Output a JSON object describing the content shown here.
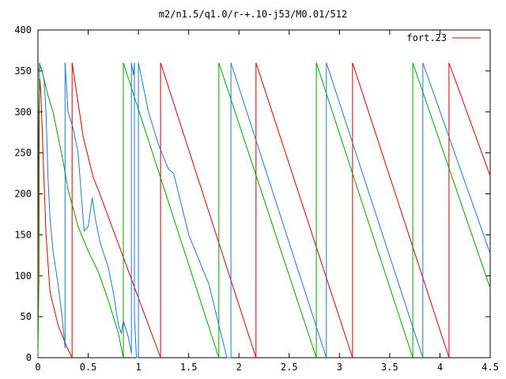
{
  "chart_data": {
    "type": "line",
    "title": "m2/n1.5/q1.0/r-+.10-j53/M0.01/512",
    "xlabel": "",
    "ylabel": "",
    "xlim": [
      0,
      4.5
    ],
    "ylim": [
      0,
      400
    ],
    "xticks": [
      0,
      0.5,
      1,
      1.5,
      2,
      2.5,
      3,
      3.5,
      4,
      4.5
    ],
    "xtick_labels": [
      "0",
      "0.5",
      "1",
      "1.5",
      "2",
      "2.5",
      "3",
      "3.5",
      "4",
      "4.5"
    ],
    "yticks": [
      0,
      50,
      100,
      150,
      200,
      250,
      300,
      350,
      400
    ],
    "ytick_labels": [
      "0",
      "50",
      "100",
      "150",
      "200",
      "250",
      "300",
      "350",
      "400"
    ],
    "grid": false,
    "legend": {
      "position": "top-right",
      "entries": [
        "fort.23"
      ]
    },
    "series": [
      {
        "name": "fort.23",
        "color": "#cc0000",
        "segments": [
          [
            [
              0.0,
              0
            ],
            [
              0.005,
              210
            ],
            [
              0.01,
              300
            ],
            [
              0.02,
              340
            ],
            [
              0.03,
              320
            ],
            [
              0.05,
              250
            ],
            [
              0.08,
              150
            ],
            [
              0.12,
              80
            ],
            [
              0.2,
              40
            ],
            [
              0.28,
              15
            ],
            [
              0.34,
              0
            ]
          ],
          [
            [
              0.34,
              0
            ],
            [
              0.34,
              360
            ]
          ],
          [
            [
              0.34,
              360
            ],
            [
              0.45,
              270
            ],
            [
              0.55,
              220
            ],
            [
              0.6,
              205
            ],
            [
              1.22,
              0
            ]
          ],
          [
            [
              1.22,
              0
            ],
            [
              1.22,
              360
            ]
          ],
          [
            [
              1.22,
              360
            ],
            [
              2.17,
              0
            ]
          ],
          [
            [
              2.17,
              0
            ],
            [
              2.17,
              360
            ]
          ],
          [
            [
              2.17,
              360
            ],
            [
              3.13,
              0
            ]
          ],
          [
            [
              3.13,
              0
            ],
            [
              3.13,
              360
            ]
          ],
          [
            [
              3.13,
              360
            ],
            [
              4.09,
              0
            ]
          ],
          [
            [
              4.09,
              0
            ],
            [
              4.09,
              360
            ]
          ],
          [
            [
              4.09,
              360
            ],
            [
              4.5,
              222
            ]
          ]
        ]
      },
      {
        "name": "",
        "color": "#00a000",
        "segments": [
          [
            [
              0.0,
              5
            ],
            [
              0.01,
              100
            ],
            [
              0.015,
              360
            ]
          ],
          [
            [
              0.015,
              360
            ],
            [
              0.05,
              345
            ],
            [
              0.1,
              320
            ],
            [
              0.15,
              300
            ],
            [
              0.2,
              270
            ],
            [
              0.25,
              240
            ],
            [
              0.3,
              205
            ],
            [
              0.4,
              160
            ],
            [
              0.5,
              130
            ],
            [
              0.6,
              105
            ],
            [
              0.7,
              70
            ],
            [
              0.8,
              30
            ],
            [
              0.85,
              0
            ]
          ],
          [
            [
              0.85,
              0
            ],
            [
              0.85,
              360
            ]
          ],
          [
            [
              0.85,
              360
            ],
            [
              1.8,
              0
            ]
          ],
          [
            [
              1.8,
              0
            ],
            [
              1.8,
              360
            ]
          ],
          [
            [
              1.8,
              360
            ],
            [
              2.77,
              0
            ]
          ],
          [
            [
              2.77,
              0
            ],
            [
              2.77,
              360
            ]
          ],
          [
            [
              2.77,
              360
            ],
            [
              3.73,
              0
            ]
          ],
          [
            [
              3.73,
              0
            ],
            [
              3.73,
              360
            ]
          ],
          [
            [
              3.73,
              360
            ],
            [
              4.5,
              85
            ]
          ]
        ]
      },
      {
        "name": "",
        "color": "#1f77c8",
        "segments": [
          [
            [
              0.0,
              350
            ],
            [
              0.03,
              355
            ],
            [
              0.06,
              340
            ],
            [
              0.08,
              300
            ],
            [
              0.1,
              220
            ],
            [
              0.12,
              170
            ],
            [
              0.15,
              130
            ],
            [
              0.2,
              90
            ],
            [
              0.24,
              50
            ],
            [
              0.27,
              12
            ]
          ],
          [
            [
              0.27,
              12
            ],
            [
              0.27,
              360
            ]
          ],
          [
            [
              0.27,
              360
            ],
            [
              0.3,
              300
            ],
            [
              0.35,
              280
            ],
            [
              0.4,
              250
            ],
            [
              0.43,
              200
            ],
            [
              0.46,
              155
            ],
            [
              0.5,
              160
            ],
            [
              0.54,
              195
            ],
            [
              0.57,
              170
            ],
            [
              0.62,
              140
            ],
            [
              0.7,
              110
            ],
            [
              0.75,
              80
            ],
            [
              0.8,
              40
            ],
            [
              0.83,
              30
            ],
            [
              0.85,
              45
            ],
            [
              0.9,
              25
            ],
            [
              0.93,
              5
            ]
          ],
          [
            [
              0.93,
              5
            ],
            [
              0.93,
              360
            ]
          ],
          [
            [
              0.93,
              360
            ],
            [
              0.95,
              345
            ],
            [
              0.96,
              360
            ]
          ],
          [
            [
              0.96,
              360
            ],
            [
              0.96,
              50
            ],
            [
              0.98,
              0
            ],
            [
              1.0,
              0
            ]
          ],
          [
            [
              1.0,
              0
            ],
            [
              1.0,
              360
            ]
          ],
          [
            [
              1.0,
              360
            ],
            [
              1.1,
              300
            ],
            [
              1.2,
              260
            ],
            [
              1.3,
              230
            ],
            [
              1.35,
              225
            ],
            [
              1.4,
              200
            ],
            [
              1.5,
              150
            ],
            [
              1.6,
              120
            ],
            [
              1.7,
              90
            ],
            [
              1.8,
              40
            ],
            [
              1.88,
              0
            ]
          ],
          [
            [
              1.88,
              0
            ],
            [
              1.92,
              0
            ],
            [
              1.92,
              360
            ]
          ],
          [
            [
              1.92,
              360
            ],
            [
              2.87,
              0
            ]
          ],
          [
            [
              2.87,
              0
            ],
            [
              2.87,
              360
            ]
          ],
          [
            [
              2.87,
              360
            ],
            [
              3.83,
              0
            ]
          ],
          [
            [
              3.83,
              0
            ],
            [
              3.83,
              360
            ]
          ],
          [
            [
              3.83,
              360
            ],
            [
              4.5,
              127
            ]
          ]
        ]
      }
    ]
  }
}
